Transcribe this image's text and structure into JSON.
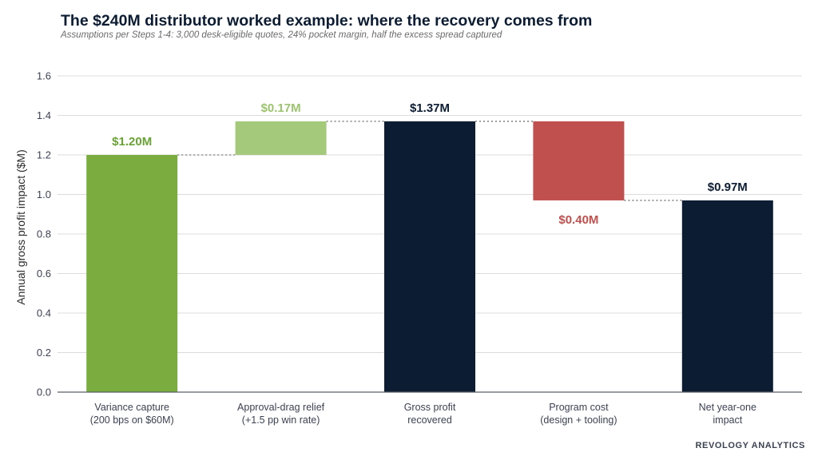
{
  "title": "The $240M distributor worked example: where the recovery comes from",
  "subtitle": "Assumptions per Steps 1-4: 3,000 desk-eligible quotes, 24% pocket margin, half the excess spread captured",
  "brand": "REVOLOGY ANALYTICS",
  "chart_data": {
    "type": "bar",
    "subtype": "waterfall",
    "ylabel": "Annual gross profit impact ($M)",
    "ylim": [
      0,
      1.6
    ],
    "yticks": [
      0.0,
      0.2,
      0.4,
      0.6,
      0.8,
      1.0,
      1.2,
      1.4,
      1.6
    ],
    "ytick_labels": [
      "0.0",
      "0.2",
      "0.4",
      "0.6",
      "0.8",
      "1.0",
      "1.2",
      "1.4",
      "1.6"
    ],
    "grid": true,
    "bars": [
      {
        "category": [
          "Variance capture",
          "(200 bps on $60M)"
        ],
        "start": 0,
        "end": 1.2,
        "label": "$1.20M",
        "color": "#7aac3f",
        "label_color": "#6aa335",
        "label_pos": "above"
      },
      {
        "category": [
          "Approval-drag relief",
          "(+1.5 pp win rate)"
        ],
        "start": 1.2,
        "end": 1.37,
        "label": "$0.17M",
        "color": "#a5c97b",
        "label_color": "#9cc46e",
        "label_pos": "above"
      },
      {
        "category": [
          "Gross profit",
          "recovered"
        ],
        "start": 0,
        "end": 1.37,
        "label": "$1.37M",
        "color": "#0c1c33",
        "label_color": "#0c1c33",
        "label_pos": "above"
      },
      {
        "category": [
          "Program cost",
          "(design + tooling)"
        ],
        "start": 1.37,
        "end": 0.97,
        "label": "$0.40M",
        "color": "#c0504d",
        "label_color": "#c0504d",
        "label_pos": "below"
      },
      {
        "category": [
          "Net year-one",
          "impact"
        ],
        "start": 0,
        "end": 0.97,
        "label": "$0.97M",
        "color": "#0c1c33",
        "label_color": "#0c1c33",
        "label_pos": "above"
      }
    ],
    "connectors": [
      {
        "from": 0,
        "to": 1,
        "y": 1.2
      },
      {
        "from": 1,
        "to": 2,
        "y": 1.37
      },
      {
        "from": 2,
        "to": 3,
        "y": 1.37
      },
      {
        "from": 3,
        "to": 4,
        "y": 0.97
      }
    ]
  }
}
